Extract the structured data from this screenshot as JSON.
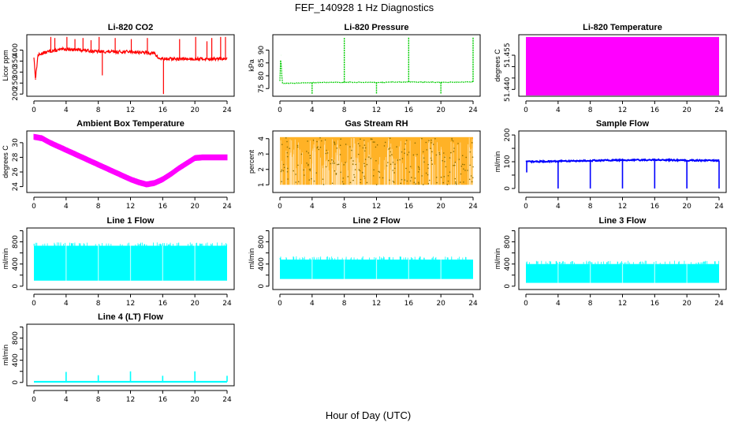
{
  "figure": {
    "title": "FEF_140928  1 Hz Diagnostics",
    "xlabel": "Hour of Day (UTC)"
  },
  "colors": {
    "red": "#ff0000",
    "green": "#00cc00",
    "magenta": "#ff00ff",
    "orange": "#ffa500",
    "blue": "#0000ff",
    "cyan": "#00ffff"
  },
  "chart_data": [
    {
      "type": "line",
      "title": "Li-820 CO2",
      "ylabel": "Licor ppm",
      "color": "red",
      "xlim": [
        0,
        24
      ],
      "ylim": [
        190,
        470
      ],
      "xticks": [
        0,
        4,
        8,
        12,
        16,
        20,
        24
      ],
      "yticks": [
        200,
        250,
        300,
        350,
        400
      ],
      "x": [
        0,
        0.2,
        0.5,
        1,
        2,
        3,
        4,
        6,
        8,
        10,
        12,
        14,
        15,
        15.5,
        16,
        17,
        18,
        20,
        22,
        24
      ],
      "y": [
        370,
        270,
        375,
        385,
        395,
        400,
        405,
        400,
        393,
        392,
        393,
        388,
        385,
        362,
        360,
        360,
        360,
        360,
        360,
        360
      ],
      "spikes_x": [
        0.2,
        2.1,
        2.6,
        4.1,
        5.1,
        6.1,
        7.1,
        8.1,
        8.5,
        10.1,
        12.1,
        14.1,
        16.1,
        18.1,
        20.1,
        21.5,
        22.1,
        23.2,
        23.8
      ],
      "spikes_y": [
        265,
        460,
        455,
        460,
        450,
        455,
        445,
        460,
        285,
        455,
        450,
        455,
        200,
        450,
        460,
        440,
        455,
        460,
        460
      ]
    },
    {
      "type": "line",
      "title": "Li-820 Pressure",
      "ylabel": "kPa",
      "color": "green",
      "xlim": [
        0,
        24
      ],
      "ylim": [
        72,
        96
      ],
      "xticks": [
        0,
        4,
        8,
        12,
        16,
        20,
        24
      ],
      "yticks": [
        75,
        80,
        85,
        90
      ],
      "x": [
        0,
        0.1,
        0.3,
        4,
        8,
        12,
        16,
        20,
        24
      ],
      "y": [
        78,
        88,
        77,
        77.3,
        77.5,
        77.4,
        77.6,
        77.4,
        77.6
      ],
      "spikes_x": [
        0.1,
        4,
        8,
        12,
        16,
        20,
        24
      ],
      "spikes_y": [
        88,
        73,
        95,
        73,
        95,
        73,
        95
      ]
    },
    {
      "type": "area",
      "title": "Li-820 Temperature",
      "ylabel": "degrees C",
      "color": "magenta",
      "xlim": [
        0,
        24
      ],
      "ylim": [
        51.437,
        51.464
      ],
      "xticks": [
        0,
        4,
        8,
        12,
        16,
        20,
        24
      ],
      "yticks": [
        51.44,
        51.445,
        51.45,
        51.455
      ],
      "ytick_labels": [
        "51.440",
        "",
        "",
        "51.455"
      ],
      "band_low": 51.437,
      "band_high": 51.463
    },
    {
      "type": "line",
      "title": "Ambient Box Temperature",
      "ylabel": "degrees C",
      "color": "magenta",
      "xlim": [
        0,
        24
      ],
      "ylim": [
        23.2,
        31.6
      ],
      "xticks": [
        0,
        4,
        8,
        12,
        16,
        20,
        24
      ],
      "yticks": [
        24,
        26,
        28,
        30
      ],
      "x": [
        0,
        1,
        2,
        4,
        6,
        8,
        10,
        12,
        13,
        14,
        15,
        16,
        17,
        18,
        19,
        20,
        21,
        22,
        23,
        24
      ],
      "y": [
        30.8,
        30.6,
        30.0,
        29.0,
        28.0,
        27.0,
        26.0,
        25.0,
        24.6,
        24.3,
        24.5,
        25.0,
        25.7,
        26.5,
        27.2,
        27.9,
        28.0,
        28.0,
        28.0,
        28.0
      ],
      "band": 0.35
    },
    {
      "type": "scatter",
      "title": "Gas Stream RH",
      "ylabel": "percent",
      "color": "orange",
      "xlim": [
        0,
        24
      ],
      "ylim": [
        0.5,
        4.5
      ],
      "xticks": [
        0,
        4,
        8,
        12,
        16,
        20,
        24
      ],
      "yticks": [
        1,
        2,
        3,
        4
      ],
      "band_low": 1.0,
      "band_high": 4.1
    },
    {
      "type": "line",
      "title": "Sample Flow",
      "ylabel": "ml/min",
      "color": "blue",
      "xlim": [
        0,
        24
      ],
      "ylim": [
        -15,
        215
      ],
      "xticks": [
        0,
        4,
        8,
        12,
        16,
        20,
        24
      ],
      "yticks": [
        0,
        50,
        100,
        150,
        200
      ],
      "ytick_labels": [
        "0",
        "",
        "100",
        "",
        "200"
      ],
      "x": [
        0,
        4,
        8,
        12,
        16,
        20,
        24
      ],
      "y": [
        100,
        102,
        104,
        106,
        107,
        105,
        104
      ],
      "spikes_x": [
        0.1,
        4,
        8,
        12,
        16,
        20,
        24
      ],
      "spikes_y": [
        60,
        0,
        0,
        0,
        0,
        0,
        0
      ]
    },
    {
      "type": "area",
      "title": "Line 1 Flow",
      "ylabel": "ml/min",
      "color": "cyan",
      "xlim": [
        0,
        24
      ],
      "ylim": [
        -60,
        1050
      ],
      "xticks": [
        0,
        4,
        8,
        12,
        16,
        20,
        24
      ],
      "yticks": [
        0,
        200,
        400,
        600,
        800,
        1000
      ],
      "ytick_labels": [
        "0",
        "",
        "400",
        "",
        "800",
        ""
      ],
      "band_low": 100,
      "band_high": 730
    },
    {
      "type": "area",
      "title": "Line 2 Flow",
      "ylabel": "ml/min",
      "color": "cyan",
      "xlim": [
        0,
        24
      ],
      "ylim": [
        -60,
        1050
      ],
      "xticks": [
        0,
        4,
        8,
        12,
        16,
        20,
        24
      ],
      "yticks": [
        0,
        200,
        400,
        600,
        800,
        1000
      ],
      "ytick_labels": [
        "0",
        "",
        "400",
        "",
        "800",
        ""
      ],
      "band_low": 130,
      "band_high": 480
    },
    {
      "type": "area",
      "title": "Line 3 Flow",
      "ylabel": "ml/min",
      "color": "cyan",
      "xlim": [
        0,
        24
      ],
      "ylim": [
        -60,
        1050
      ],
      "xticks": [
        0,
        4,
        8,
        12,
        16,
        20,
        24
      ],
      "yticks": [
        0,
        200,
        400,
        600,
        800,
        1000
      ],
      "ytick_labels": [
        "0",
        "",
        "400",
        "",
        "800",
        ""
      ],
      "band_low": 60,
      "band_high": 400
    },
    {
      "type": "line",
      "title": "Line 4 (LT) Flow",
      "ylabel": "ml/min",
      "color": "cyan",
      "xlim": [
        0,
        24
      ],
      "ylim": [
        -60,
        1050
      ],
      "xticks": [
        0,
        4,
        8,
        12,
        16,
        20,
        24
      ],
      "yticks": [
        0,
        200,
        400,
        600,
        800,
        1000
      ],
      "ytick_labels": [
        "0",
        "",
        "400",
        "",
        "800",
        ""
      ],
      "x": [
        0,
        24
      ],
      "y": [
        12,
        12
      ],
      "spikes_x": [
        4,
        8,
        12,
        16,
        20,
        24
      ],
      "spikes_y": [
        190,
        130,
        200,
        120,
        200,
        120
      ]
    }
  ]
}
